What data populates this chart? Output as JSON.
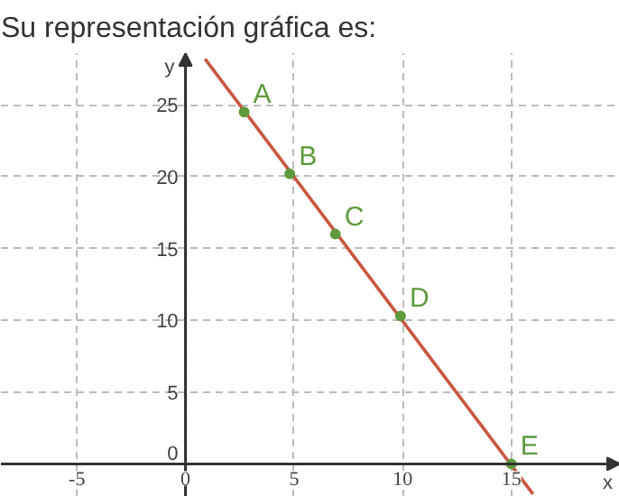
{
  "chart_data": {
    "type": "line",
    "title": "Su representación gráfica es:",
    "xlabel": "x",
    "ylabel": "y",
    "xlim": [
      -8.5,
      20
    ],
    "ylim": [
      -2.3,
      28.6
    ],
    "xticks": [
      -5,
      0,
      5,
      10,
      15
    ],
    "yticks": [
      0,
      5,
      10,
      15,
      20,
      25
    ],
    "grid": true,
    "series": [
      {
        "color": "#c9573f",
        "x": [
          0.9,
          16
        ],
        "values": [
          28.2,
          -2.1
        ]
      },
      {
        "type": "scatter",
        "color": "#5e9a3c",
        "marker": "circle",
        "x": [
          2.7,
          4.8,
          6.9,
          9.9,
          15
        ],
        "values": [
          24.5,
          20.2,
          16.0,
          10.3,
          0
        ]
      }
    ],
    "annotations": [
      {
        "text": "A",
        "x": 2.7,
        "y": 24.5
      },
      {
        "text": "B",
        "x": 4.8,
        "y": 20.2
      },
      {
        "text": "C",
        "x": 6.9,
        "y": 16.0
      },
      {
        "text": "D",
        "x": 9.9,
        "y": 10.3
      },
      {
        "text": "E",
        "x": 15,
        "y": 0
      }
    ]
  }
}
